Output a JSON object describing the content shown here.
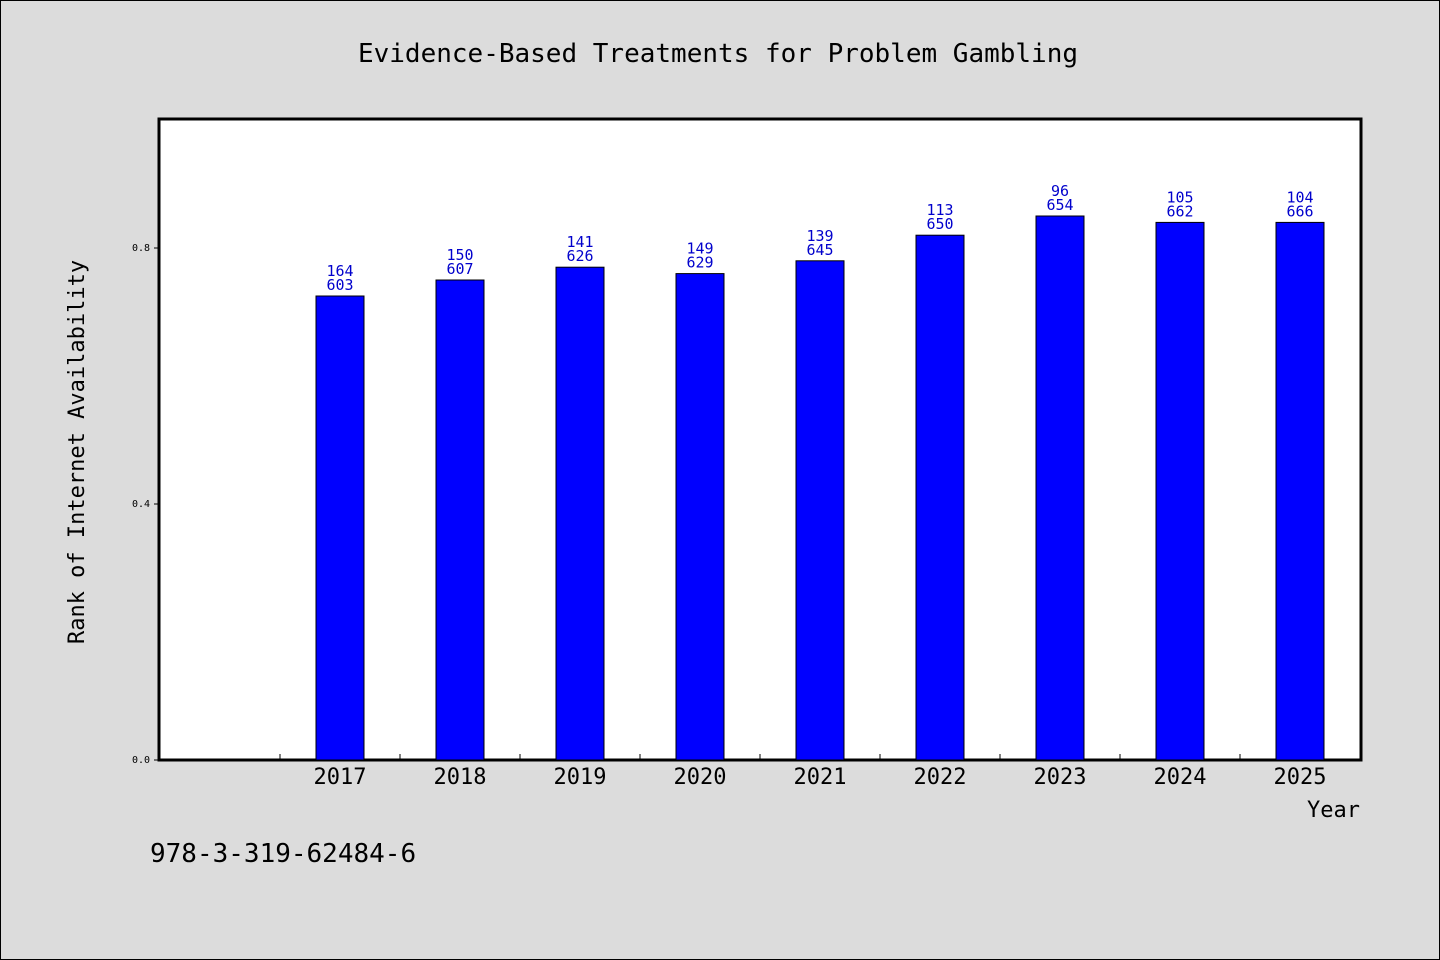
{
  "chart_data": {
    "type": "bar",
    "title": "Evidence-Based Treatments for Problem Gambling",
    "xlabel": "Year",
    "ylabel": "Rank of Internet Availability",
    "categories": [
      "2017",
      "2018",
      "2019",
      "2020",
      "2021",
      "2022",
      "2023",
      "2024",
      "2025"
    ],
    "values": [
      0.725,
      0.75,
      0.77,
      0.76,
      0.78,
      0.82,
      0.85,
      0.84,
      0.84
    ],
    "bar_labels_top": [
      "164",
      "150",
      "141",
      "149",
      "139",
      "113",
      "96",
      "105",
      "104"
    ],
    "bar_labels_bottom": [
      "603",
      "607",
      "626",
      "629",
      "645",
      "650",
      "654",
      "662",
      "666"
    ],
    "y_ticks": [
      "0.0",
      "0.4",
      "0.8"
    ],
    "ylim": [
      0,
      1.0
    ],
    "grid": false,
    "bar_color": "#0000ff",
    "label_color": "#0000cc"
  },
  "footer": {
    "isbn": "978-3-319-62484-6"
  }
}
